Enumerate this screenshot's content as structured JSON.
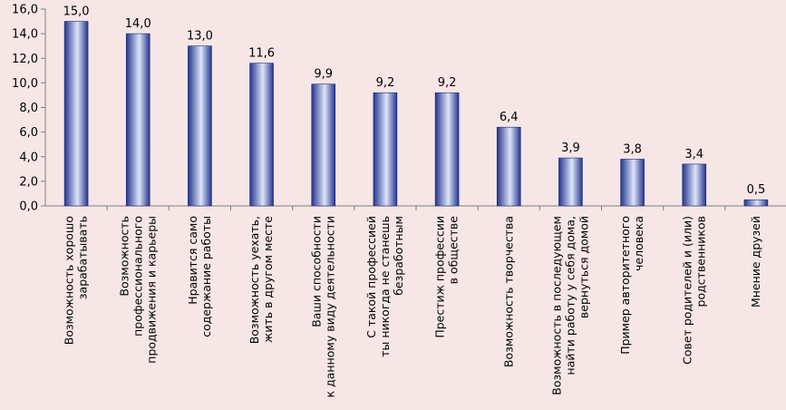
{
  "chart_data": {
    "type": "bar",
    "title": "",
    "xlabel": "",
    "ylabel": "",
    "ylim": [
      0,
      16
    ],
    "yticks": [
      "0,0",
      "2,0",
      "4,0",
      "6,0",
      "8,0",
      "10,0",
      "12,0",
      "14,0",
      "16,0"
    ],
    "grid": false,
    "legend": "none",
    "bar_color_dark": "#24348f",
    "bar_color_light": "#dde5f8",
    "background": "#f6e6e6",
    "categories": [
      [
        "Возможность хорошо",
        "зарабатывать"
      ],
      [
        "Возможность",
        "профессионального",
        "продвижения и карьеры"
      ],
      [
        "Нравится само",
        "содержание работы"
      ],
      [
        "Возможность уехать,",
        "жить в другом месте"
      ],
      [
        "Ваши способности",
        "к данному виду деятельности"
      ],
      [
        "С такой профессией",
        "ты никогда не станешь",
        "безработным"
      ],
      [
        "Престиж профессии",
        "в обществе"
      ],
      [
        "Возможность творчества"
      ],
      [
        "Возможность в последующем",
        "найти работу у себя дома,",
        "вернуться домой"
      ],
      [
        "Пример авторитетного",
        "человека"
      ],
      [
        "Совет родителей и (или)",
        "родственников"
      ],
      [
        "Мнение друзей"
      ]
    ],
    "values": [
      15.0,
      14.0,
      13.0,
      11.6,
      9.9,
      9.2,
      9.2,
      6.4,
      3.9,
      3.8,
      3.4,
      0.5
    ],
    "data_labels": [
      "15,0",
      "14,0",
      "13,0",
      "11,6",
      "9,9",
      "9,2",
      "9,2",
      "6,4",
      "3,9",
      "3,8",
      "3,4",
      "0,5"
    ]
  }
}
